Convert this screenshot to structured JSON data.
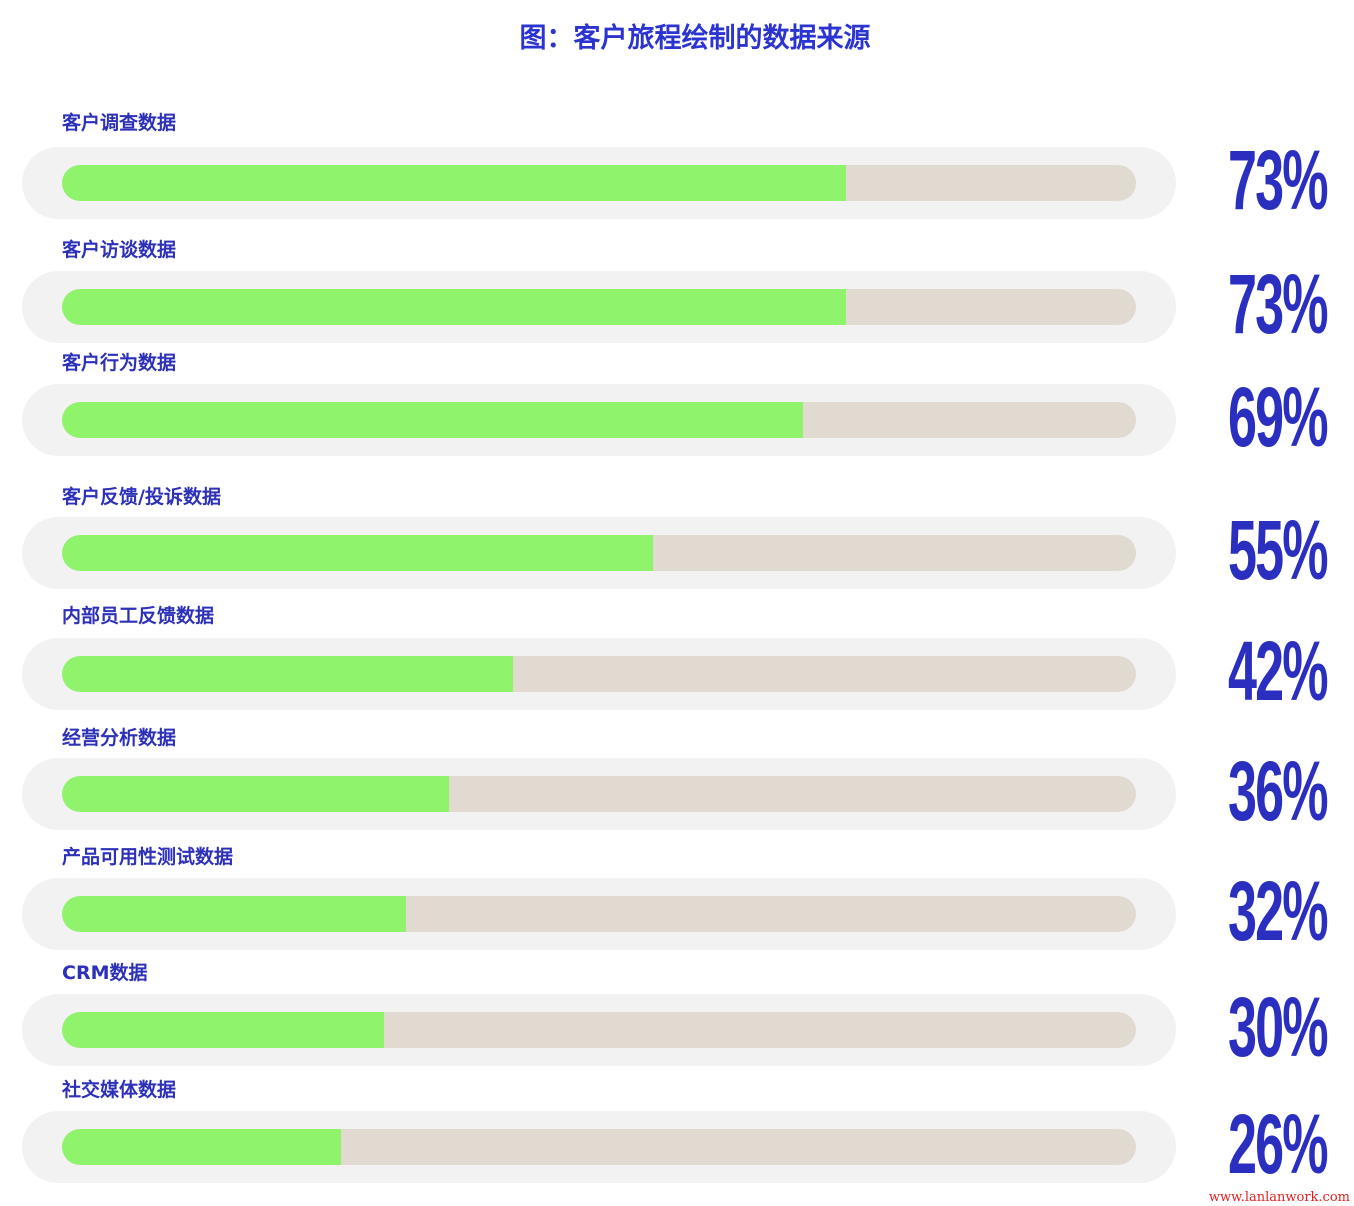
{
  "chart_data": {
    "type": "bar",
    "orientation": "horizontal",
    "title": "图：客户旅程绘制的数据来源",
    "categories": [
      "客户调查数据",
      "客户访谈数据",
      "客户行为数据",
      "客户反馈/投诉数据",
      "内部员工反馈数据",
      "经营分析数据",
      "产品可用性测试数据",
      "CRM数据",
      "社交媒体数据"
    ],
    "values": [
      73,
      73,
      69,
      55,
      42,
      36,
      32,
      30,
      26
    ],
    "value_labels": [
      "73%",
      "73%",
      "69%",
      "55%",
      "42%",
      "36%",
      "32%",
      "30%",
      "26%"
    ],
    "xlim": [
      0,
      100
    ],
    "unit": "%",
    "grid": false,
    "colors": {
      "fill": "#8ff36b",
      "track": "#e1dad1",
      "text": "#2a2fc0"
    }
  },
  "watermark": "www.lanlanwork.com"
}
